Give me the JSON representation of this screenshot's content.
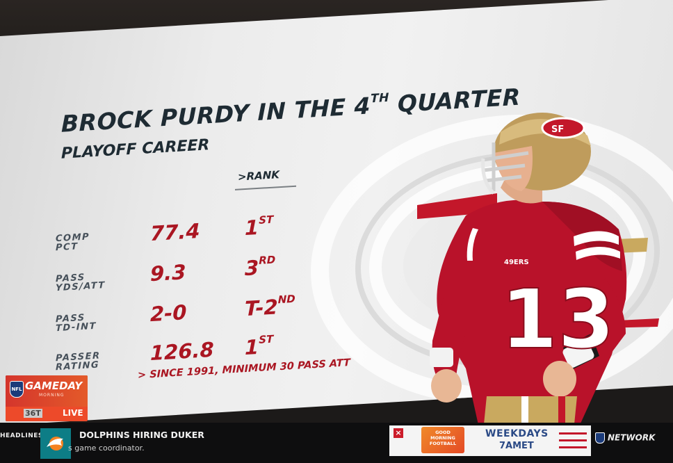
{
  "graphic": {
    "title": "BROCK PURDY IN THE 4",
    "title_sup": "TH",
    "title_end": " QUARTER",
    "subtitle": "PLAYOFF CAREER",
    "rank_header": ">RANK",
    "footnote": "> SINCE 1991, MINIMUM 30 PASS ATT",
    "stats": [
      {
        "label_line1": "COMP",
        "label_line2": "PCT",
        "value": "77.4",
        "rank": "1",
        "rank_sup": "ST"
      },
      {
        "label_line1": "PASS",
        "label_line2": "YDS/ATT",
        "value": "9.3",
        "rank": "3",
        "rank_sup": "RD"
      },
      {
        "label_line1": "PASS",
        "label_line2": "TD-INT",
        "value": "2-0",
        "rank": "T-2",
        "rank_sup": "ND"
      },
      {
        "label_line1": "PASSER",
        "label_line2": "RATING",
        "value": "126.8",
        "rank": "1",
        "rank_sup": "ST"
      }
    ],
    "player": {
      "jersey_number": "13",
      "jersey_text": "49ERS"
    },
    "colors": {
      "accent_red": "#aa1622",
      "navy": "#1e2b33",
      "gold": "#b79a5c"
    }
  },
  "show_badge": {
    "title": "GAMEDAY",
    "subtitle": "MORNING",
    "channel": "36T",
    "live": "LIVE",
    "league_icon": "nfl-shield-icon"
  },
  "ticker": {
    "section": "HEADLINES",
    "headline": "DOLPHINS HIRING DUKER",
    "subline": "s game coordinator.",
    "team_icon": "dolphins-logo-icon"
  },
  "promo": {
    "close": "×",
    "logo_text": "GOOD MORNING FOOTBALL",
    "line1": "WEEKDAYS",
    "line2": "7AMET"
  },
  "network": {
    "label": "NETWORK"
  }
}
